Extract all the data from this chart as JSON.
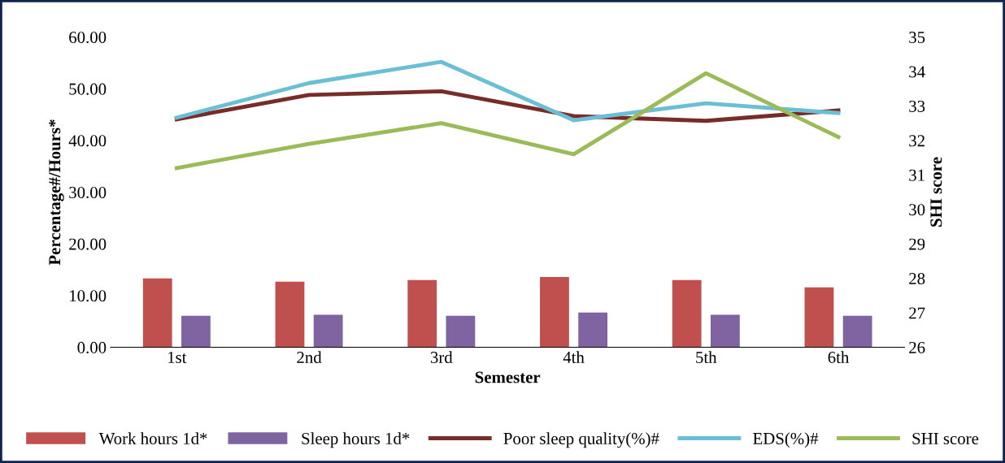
{
  "chart_data": {
    "type": "bar",
    "xlabel": "Semester",
    "ylabel": "Percentage#/Hours*",
    "y2label": "SHI score",
    "categories": [
      "1st",
      "2nd",
      "3rd",
      "4th",
      "5th",
      "6th"
    ],
    "series": [
      {
        "name": "Work hours 1d*",
        "color": "#c0504d",
        "values": [
          13.3,
          12.7,
          13.0,
          13.6,
          13.0,
          11.6
        ]
      },
      {
        "name": "Sleep hours 1d*",
        "color": "#8064a2",
        "values": [
          6.1,
          6.3,
          6.1,
          6.7,
          6.3,
          6.1
        ]
      },
      {
        "name": "Poor sleep quality(%)#",
        "type": "line",
        "color": "#772c2a",
        "values": [
          44.1,
          48.8,
          49.5,
          44.7,
          43.8,
          45.8
        ]
      },
      {
        "name": "EDS(%)#",
        "type": "line",
        "color": "#6bbfd4",
        "values": [
          44.4,
          51.1,
          55.2,
          43.9,
          47.2,
          45.3
        ]
      },
      {
        "name": "SHI score",
        "type": "line",
        "axis": "y2",
        "color": "#9bbb59",
        "values": [
          31.2,
          31.9,
          32.5,
          31.6,
          33.95,
          32.1
        ]
      }
    ],
    "ylim": [
      0,
      60
    ],
    "yticks": [
      {
        "value": 0,
        "label": "0.00"
      },
      {
        "value": 10,
        "label": "10.00"
      },
      {
        "value": 20,
        "label": "20.00"
      },
      {
        "value": 30,
        "label": "30.00"
      },
      {
        "value": 40,
        "label": "40.00"
      },
      {
        "value": 50,
        "label": "50.00"
      },
      {
        "value": 60,
        "label": "60.00"
      }
    ],
    "y2lim": [
      26,
      35
    ],
    "y2ticks": [
      26,
      27,
      28,
      29,
      30,
      31,
      32,
      33,
      34,
      35
    ],
    "grid": false,
    "legend": "bottom",
    "marker": "none",
    "line_style": "solid"
  }
}
